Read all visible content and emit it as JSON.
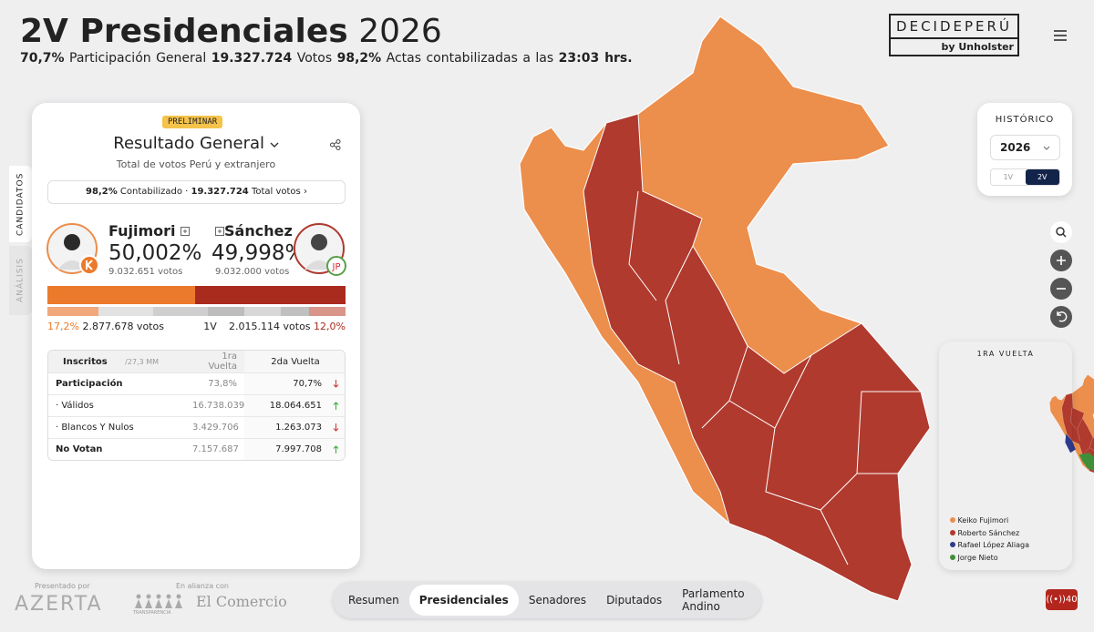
{
  "header": {
    "title": "2V Presidenciales",
    "year": "2026",
    "stats": [
      "70,7%",
      "Participación General",
      "19.327.724",
      "Votos",
      "98,2%",
      "Actas contabilizadas a las",
      "23:03 hrs."
    ]
  },
  "brand": {
    "name": "DECIDEPERÚ",
    "by": "by Unholster"
  },
  "side_tabs": [
    "CANDIDATOS",
    "ANÁLISIS"
  ],
  "card": {
    "badge": "PRELIMINAR",
    "title": "Resultado General",
    "subtitle": "Total de votos Perú y extranjero",
    "summary": [
      "98,2%",
      "Contabilizado ·",
      "19.327.724",
      "Total votos"
    ],
    "candidates": [
      {
        "name": "Fujimori",
        "share": "50,002%",
        "votes": "9.032.651 votos"
      },
      {
        "name": "Sánchez",
        "share": "49,998%",
        "votes": "9.032.000 votos"
      }
    ],
    "first_round": {
      "left_share": "17,2%",
      "left_votes": "2.877.678 votos",
      "label": "1V",
      "right_votes": "2.015.114 votos",
      "right_share": "12,0%"
    },
    "table": {
      "header": [
        "Inscritos",
        "/27,3 MM",
        "1ra Vuelta",
        "2da Vuelta"
      ],
      "rows": [
        [
          "Participación",
          "73,8%",
          "70,7%"
        ],
        [
          "· Válidos",
          "16.738.039",
          "18.064.651"
        ],
        [
          "· Blancos Y Nulos",
          "3.429.706",
          "1.263.073"
        ],
        [
          "No Votan",
          "7.157.687",
          "7.997.708"
        ]
      ]
    }
  },
  "history": {
    "title": "HISTÓRICO",
    "year": "2026",
    "rounds": [
      "1V",
      "2V"
    ]
  },
  "mini_map": {
    "title": "1RA VUELTA",
    "legend": [
      "Keiko Fujimori",
      "Roberto Sánchez",
      "Rafael López Aliaga",
      "Jorge Nieto"
    ]
  },
  "footer": {
    "presented_by": "Presentado por",
    "sponsor": "AZERTA",
    "alliance": "En alianza con",
    "partners": [
      "TRANSPARENCIA",
      "El Comercio"
    ]
  },
  "nav": [
    "Resumen",
    "Presidenciales",
    "Senadores",
    "Diputados",
    "Parlamento Andino"
  ],
  "live": "40"
}
